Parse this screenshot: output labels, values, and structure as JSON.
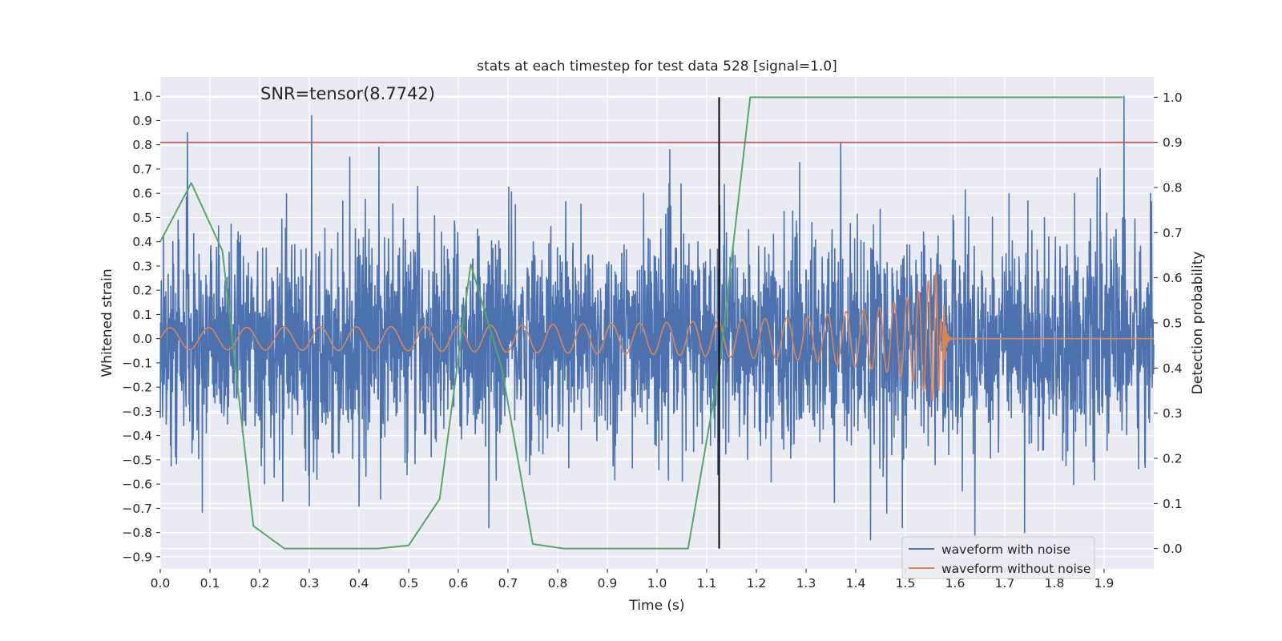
{
  "chart_data": {
    "type": "line",
    "title": "stats at each timestep for test data 528 [signal=1.0]",
    "xlabel": "Time (s)",
    "ylabel": "Whitened strain",
    "y2label": "Detection probability",
    "annotation": "SNR=tensor(8.7742)",
    "xlim": [
      0.0,
      2.0
    ],
    "ylim": [
      -0.95,
      1.08
    ],
    "y2lim": [
      -0.045,
      1.045
    ],
    "x_ticks": [
      "0.0",
      "0.1",
      "0.2",
      "0.3",
      "0.4",
      "0.5",
      "0.6",
      "0.7",
      "0.8",
      "0.9",
      "1.0",
      "1.1",
      "1.2",
      "1.3",
      "1.4",
      "1.5",
      "1.6",
      "1.7",
      "1.8",
      "1.9"
    ],
    "y_ticks": [
      "1.0",
      "0.9",
      "0.8",
      "0.7",
      "0.6",
      "0.5",
      "0.4",
      "0.3",
      "0.2",
      "0.1",
      "0.0",
      "-0.1",
      "-0.2",
      "-0.3",
      "-0.4",
      "-0.5",
      "-0.6",
      "-0.7",
      "-0.8",
      "-0.9"
    ],
    "y2_ticks": [
      "1.0",
      "0.9",
      "0.8",
      "0.7",
      "0.6",
      "0.5",
      "0.4",
      "0.3",
      "0.2",
      "0.1",
      "0.0"
    ],
    "grid": true,
    "legend_position": "lower-right",
    "series": [
      {
        "name": "waveform with noise",
        "color": "#4c72b0",
        "axis": "left",
        "description": "dense noisy whitened strain, ~3000 samples, values mostly within [-0.5, 0.5] with spikes to ±0.9",
        "spikes": [
          [
            0.055,
            0.85
          ],
          [
            0.305,
            0.92
          ],
          [
            1.94,
            1.0
          ],
          [
            1.37,
            0.81
          ],
          [
            0.44,
            0.79
          ],
          [
            1.43,
            -0.83
          ],
          [
            1.64,
            -0.81
          ],
          [
            1.74,
            -0.8
          ],
          [
            0.3,
            -0.69
          ]
        ]
      },
      {
        "name": "waveform without noise",
        "color": "#dd8452",
        "axis": "left",
        "description": "chirp signal, amplitude ~0.05 rising to ~0.28 near 1.57 s then ringdown to 0",
        "merger_time": 1.575,
        "envelope": [
          [
            0.0,
            0.045
          ],
          [
            0.5,
            0.05
          ],
          [
            1.0,
            0.065
          ],
          [
            1.3,
            0.09
          ],
          [
            1.45,
            0.13
          ],
          [
            1.52,
            0.18
          ],
          [
            1.565,
            0.28
          ],
          [
            1.575,
            0.0
          ]
        ]
      },
      {
        "name": "",
        "color": "#55a868",
        "axis": "right",
        "x": [
          0.0,
          0.0625,
          0.125,
          0.1875,
          0.25,
          0.3125,
          0.375,
          0.4375,
          0.5,
          0.5625,
          0.625,
          0.6875,
          0.75,
          0.8125,
          0.875,
          0.9375,
          1.0,
          1.0625,
          1.125,
          1.1875,
          1.25,
          1.9375
        ],
        "values": [
          0.68,
          0.81,
          0.66,
          0.05,
          0.0,
          0.0,
          0.0,
          0.0,
          0.007,
          0.11,
          0.63,
          0.4,
          0.01,
          0.0,
          0.0,
          0.0,
          0.0,
          0.0,
          0.4,
          1.0,
          1.0,
          1.0
        ]
      }
    ],
    "threshold": {
      "value": 0.9,
      "axis": "right",
      "color": "#c44e52"
    },
    "event_marker": {
      "x": 1.125,
      "color": "#000000",
      "y_range": [
        0.0,
        1.0
      ]
    }
  },
  "colors": {
    "axes_background": "#eaeaf2",
    "grid": "#ffffff",
    "text": "#262626"
  }
}
